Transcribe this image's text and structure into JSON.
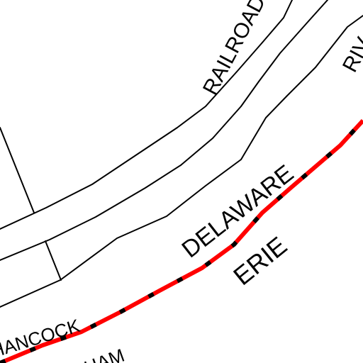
{
  "map": {
    "colors": {
      "background": "#ffffff",
      "line": "#000000",
      "rail_red": "#ff0000",
      "rail_black": "#000000"
    },
    "labels": {
      "railroad": "RAILROAD",
      "river": "RIV",
      "delaware": "DELAWARE",
      "erie": "ERIE",
      "hancock": "HANCOCK",
      "street_partial": "HAM"
    }
  }
}
